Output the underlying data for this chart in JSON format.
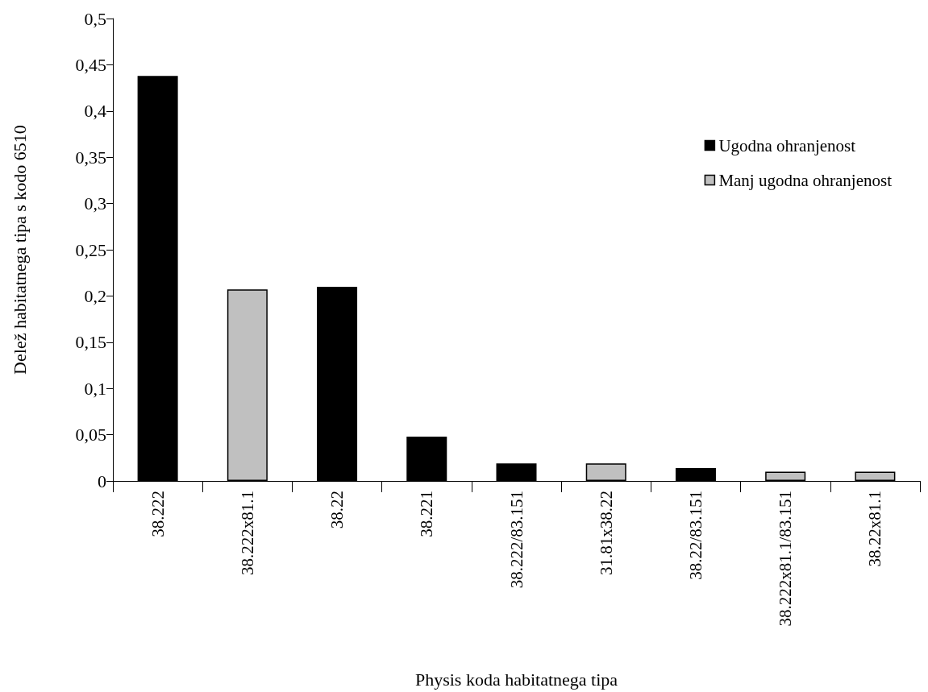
{
  "chart_data": {
    "type": "bar",
    "xlabel": "Physis koda habitatnega tipa",
    "ylabel": "Delež habitatnega tipa s kodo 6510",
    "categories": [
      "38.222",
      "38.222x81.1",
      "38.22",
      "38.221",
      "38.222/83.151",
      "31.81x38.22",
      "38.22/83.151",
      "38.222x81.1/83.151",
      "38.22x81.1"
    ],
    "series": [
      {
        "name": "Ugodna ohranjenost",
        "color": "#000000",
        "values": [
          0.438,
          null,
          0.21,
          0.048,
          0.019,
          null,
          0.014,
          null,
          null
        ]
      },
      {
        "name": "Manj ugodna ohranjenost",
        "color": "#c0c0c0",
        "values": [
          null,
          0.207,
          null,
          null,
          null,
          0.019,
          null,
          0.01,
          0.01
        ]
      }
    ],
    "ylim": [
      0,
      0.5
    ],
    "yticks": [
      0,
      {
        "value": 0.05,
        "label": "0,05"
      },
      {
        "value": 0.1,
        "label": "0,1"
      },
      {
        "value": 0.15,
        "label": "0,15"
      },
      {
        "value": 0.2,
        "label": "0,2"
      },
      {
        "value": 0.25,
        "label": "0,25"
      },
      {
        "value": 0.3,
        "label": "0,3"
      },
      {
        "value": 0.35,
        "label": "0,35"
      },
      {
        "value": 0.4,
        "label": "0,4"
      },
      {
        "value": 0.45,
        "label": "0,45"
      },
      {
        "value": 0.5,
        "label": "0,5"
      }
    ],
    "grid": false,
    "legend": "right"
  }
}
